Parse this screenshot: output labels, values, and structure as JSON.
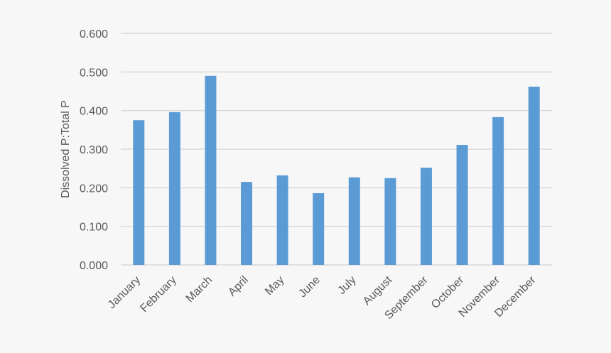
{
  "chart_data": {
    "type": "bar",
    "title": "",
    "xlabel": "",
    "ylabel": "Dissolved P:Total P",
    "categories": [
      "January",
      "February",
      "March",
      "April",
      "May",
      "June",
      "July",
      "August",
      "September",
      "October",
      "November",
      "December"
    ],
    "values": [
      0.375,
      0.396,
      0.49,
      0.215,
      0.232,
      0.186,
      0.227,
      0.225,
      0.252,
      0.311,
      0.383,
      0.462
    ],
    "ylim": [
      0,
      0.6
    ],
    "yticks": [
      "0.000",
      "0.100",
      "0.200",
      "0.300",
      "0.400",
      "0.500",
      "0.600"
    ],
    "grid": true,
    "legend": "none",
    "colors": {
      "bar": "#5b9bd5",
      "grid": "#d9d9d9",
      "text": "#595959",
      "background": "#f7f7f7"
    }
  }
}
